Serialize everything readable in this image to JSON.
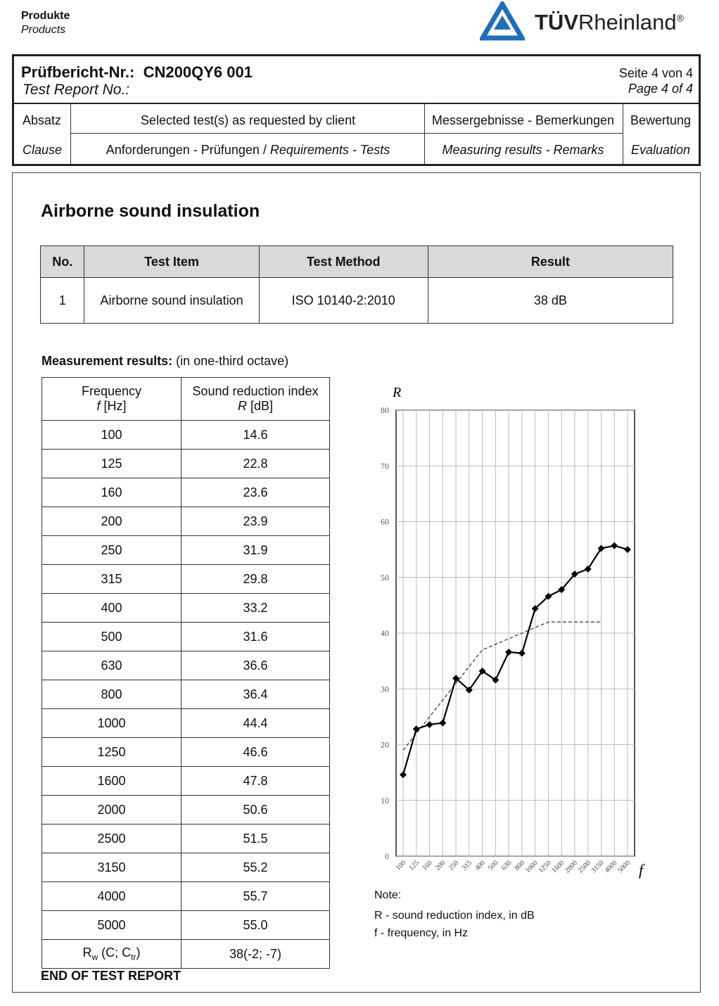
{
  "header": {
    "products_de": "Produkte",
    "products_en": "Products",
    "logo_bold": "TÜV",
    "logo_text": "Rheinland",
    "logo_mark": "®"
  },
  "report": {
    "number_label_de": "Prüfbericht-Nr.:",
    "number": "CN200QY6 001",
    "number_label_en": "Test Report No.:",
    "page_de": "Seite 4 von 4",
    "page_en": "Page 4 of 4"
  },
  "columns": {
    "clause_de": "Absatz",
    "clause_en": "Clause",
    "tests_top": "Selected test(s) as requested by client",
    "tests_de": "Anforderungen - Prüfungen /",
    "tests_en": "Requirements - Tests",
    "results_de": "Messergebnisse - Bemerkungen",
    "results_en": "Measuring results - Remarks",
    "eval_de": "Bewertung",
    "eval_en": "Evaluation"
  },
  "section_title": "Airborne sound insulation",
  "summary": {
    "headers": [
      "No.",
      "Test Item",
      "Test Method",
      "Result"
    ],
    "rows": [
      [
        "1",
        "Airborne sound insulation",
        "ISO 10140-2:2010",
        "38 dB"
      ]
    ]
  },
  "measurement": {
    "title_bold": "Measurement results:",
    "title_rest": " (in one-third octave)",
    "head_freq": "Frequency",
    "head_f": "f",
    "head_hz": "[Hz]",
    "head_index": "Sound reduction index",
    "head_r": "R",
    "head_db": "[dB]",
    "rows": [
      [
        "100",
        "14.6"
      ],
      [
        "125",
        "22.8"
      ],
      [
        "160",
        "23.6"
      ],
      [
        "200",
        "23.9"
      ],
      [
        "250",
        "31.9"
      ],
      [
        "315",
        "29.8"
      ],
      [
        "400",
        "33.2"
      ],
      [
        "500",
        "31.6"
      ],
      [
        "630",
        "36.6"
      ],
      [
        "800",
        "36.4"
      ],
      [
        "1000",
        "44.4"
      ],
      [
        "1250",
        "46.6"
      ],
      [
        "1600",
        "47.8"
      ],
      [
        "2000",
        "50.6"
      ],
      [
        "2500",
        "51.5"
      ],
      [
        "3150",
        "55.2"
      ],
      [
        "4000",
        "55.7"
      ],
      [
        "5000",
        "55.0"
      ]
    ],
    "rw_label": [
      "R",
      "w",
      " (C; C",
      "tr",
      ")"
    ],
    "rw_value": "38(-2; -7)"
  },
  "chart_data": {
    "type": "line",
    "y_label": "R",
    "x_label": "f",
    "categories": [
      "100",
      "125",
      "160",
      "200",
      "250",
      "315",
      "400",
      "500",
      "630",
      "800",
      "1000",
      "1250",
      "1600",
      "2000",
      "2500",
      "3150",
      "4000",
      "5000"
    ],
    "series": [
      {
        "color": "#000000",
        "style": "solid",
        "markers": true,
        "values": [
          14.6,
          22.8,
          23.6,
          23.9,
          31.9,
          29.8,
          33.2,
          31.6,
          36.6,
          36.4,
          44.4,
          46.6,
          47.8,
          50.6,
          51.5,
          55.2,
          55.7,
          55.0
        ]
      },
      {
        "color": "#333333",
        "style": "dashed",
        "markers": false,
        "values": [
          19,
          22,
          25,
          28,
          31,
          34,
          37,
          38,
          39,
          40,
          41,
          42,
          42,
          42,
          42,
          42,
          null,
          null
        ]
      }
    ],
    "ylim": [
      0,
      80
    ],
    "yticks": [
      0,
      10,
      20,
      30,
      40,
      50,
      60,
      70,
      80
    ],
    "grid": true
  },
  "note": {
    "title": "Note:",
    "lines": [
      "R - sound reduction index, in dB",
      "f - frequency, in Hz"
    ]
  },
  "footer": "END OF TEST REPORT"
}
